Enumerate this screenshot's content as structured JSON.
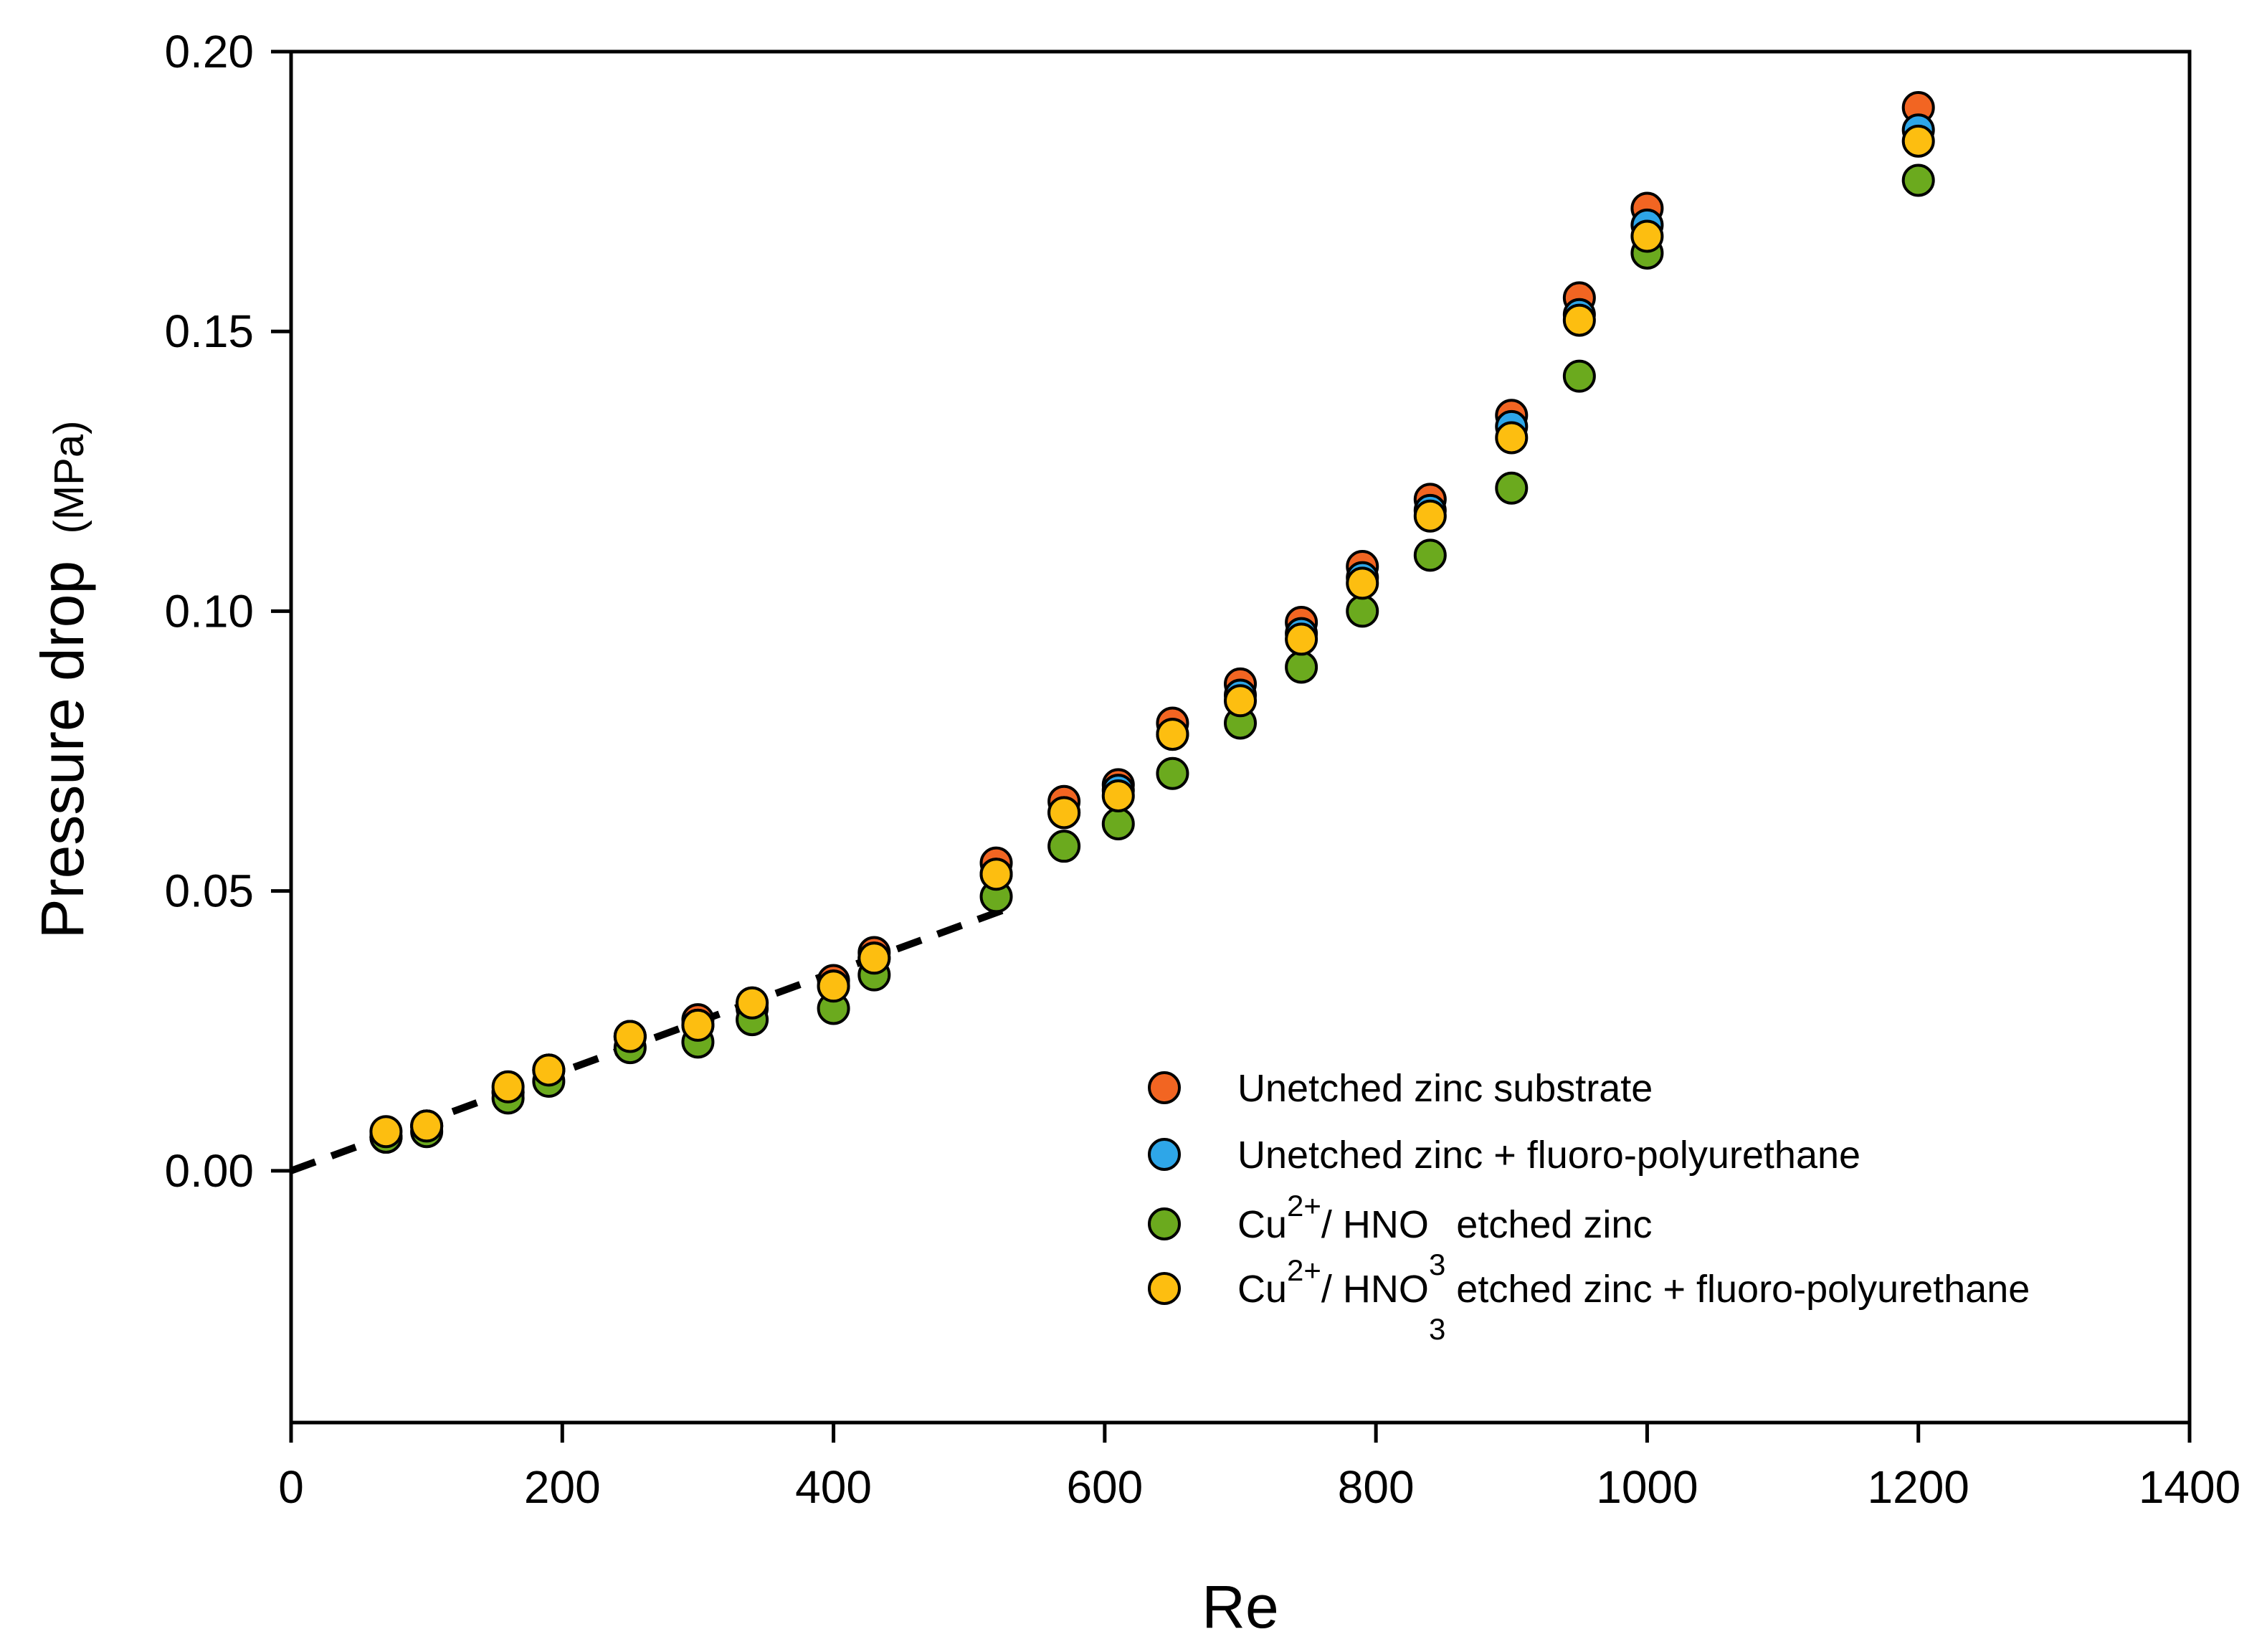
{
  "chart_data": {
    "type": "scatter",
    "title": "",
    "xlabel": "Re",
    "ylabel": "Pressure drop",
    "ylabel_unit": "(MPa)",
    "xlim": [
      0,
      1400
    ],
    "ylim": [
      -0.045,
      0.2
    ],
    "xticks": [
      0,
      200,
      400,
      600,
      800,
      1000,
      1200,
      1400
    ],
    "xtick_labels": [
      "0",
      "200",
      "400",
      "600",
      "800",
      "1000",
      "1200",
      "1400"
    ],
    "yticks": [
      0.0,
      0.05,
      0.1,
      0.15,
      0.2
    ],
    "ytick_labels": [
      "0.00",
      "0.05",
      "0.10",
      "0.15",
      "0.20"
    ],
    "grid": false,
    "legend_position": "bottom-right",
    "series": [
      {
        "name": "Unetched zinc substrate",
        "color": "#F26522",
        "points": [
          [
            70,
            0.006
          ],
          [
            100,
            0.008
          ],
          [
            160,
            0.014
          ],
          [
            190,
            0.018
          ],
          [
            250,
            0.024
          ],
          [
            300,
            0.027
          ],
          [
            340,
            0.03
          ],
          [
            400,
            0.034
          ],
          [
            430,
            0.039
          ],
          [
            520,
            0.055
          ],
          [
            570,
            0.066
          ],
          [
            610,
            0.069
          ],
          [
            650,
            0.08
          ],
          [
            700,
            0.087
          ],
          [
            745,
            0.098
          ],
          [
            790,
            0.108
          ],
          [
            840,
            0.12
          ],
          [
            900,
            0.135
          ],
          [
            950,
            0.156
          ],
          [
            1000,
            0.172
          ],
          [
            1200,
            0.19
          ]
        ]
      },
      {
        "name": "Unetched zinc + fluoro-polyurethane",
        "color": "#2EA6E8",
        "points": [
          [
            70,
            0.006
          ],
          [
            100,
            0.008
          ],
          [
            160,
            0.014
          ],
          [
            190,
            0.018
          ],
          [
            250,
            0.024
          ],
          [
            300,
            0.026
          ],
          [
            340,
            0.029
          ],
          [
            400,
            0.033
          ],
          [
            430,
            0.038
          ],
          [
            520,
            0.053
          ],
          [
            570,
            0.064
          ],
          [
            610,
            0.068
          ],
          [
            650,
            0.078
          ],
          [
            700,
            0.085
          ],
          [
            745,
            0.096
          ],
          [
            790,
            0.106
          ],
          [
            840,
            0.118
          ],
          [
            900,
            0.133
          ],
          [
            950,
            0.153
          ],
          [
            1000,
            0.169
          ],
          [
            1200,
            0.186
          ]
        ]
      },
      {
        "name": "Cu2+/ HNO3 etched zinc",
        "color": "#6BAA1E",
        "points": [
          [
            70,
            0.006
          ],
          [
            100,
            0.007
          ],
          [
            160,
            0.013
          ],
          [
            190,
            0.016
          ],
          [
            250,
            0.022
          ],
          [
            300,
            0.023
          ],
          [
            340,
            0.027
          ],
          [
            400,
            0.029
          ],
          [
            430,
            0.035
          ],
          [
            520,
            0.049
          ],
          [
            570,
            0.058
          ],
          [
            610,
            0.062
          ],
          [
            650,
            0.071
          ],
          [
            700,
            0.08
          ],
          [
            745,
            0.09
          ],
          [
            790,
            0.1
          ],
          [
            840,
            0.11
          ],
          [
            900,
            0.122
          ],
          [
            950,
            0.142
          ],
          [
            1000,
            0.164
          ],
          [
            1200,
            0.177
          ]
        ]
      },
      {
        "name": "Cu2+/ HNO3 etched zinc + fluoro-polyurethane",
        "color": "#FDBE10",
        "points": [
          [
            70,
            0.007
          ],
          [
            100,
            0.008
          ],
          [
            160,
            0.015
          ],
          [
            190,
            0.018
          ],
          [
            250,
            0.024
          ],
          [
            300,
            0.026
          ],
          [
            340,
            0.03
          ],
          [
            400,
            0.033
          ],
          [
            430,
            0.038
          ],
          [
            520,
            0.053
          ],
          [
            570,
            0.064
          ],
          [
            610,
            0.067
          ],
          [
            650,
            0.078
          ],
          [
            700,
            0.084
          ],
          [
            745,
            0.095
          ],
          [
            790,
            0.105
          ],
          [
            840,
            0.117
          ],
          [
            900,
            0.131
          ],
          [
            950,
            0.152
          ],
          [
            1000,
            0.167
          ],
          [
            1200,
            0.184
          ]
        ]
      }
    ],
    "trendline": {
      "style": "dashed",
      "color": "#000000",
      "x": [
        0,
        530
      ],
      "y": [
        0.0,
        0.047
      ]
    }
  },
  "legend": [
    {
      "parts": [
        {
          "text": "Unetched zinc substrate"
        }
      ]
    },
    {
      "parts": [
        {
          "text": "Unetched zinc + fluoro-polyurethane"
        }
      ]
    },
    {
      "parts": [
        {
          "text": "Cu"
        },
        {
          "text": "2+",
          "sup": true
        },
        {
          "text": "/ HNO"
        },
        {
          "text": "3",
          "sub": true
        },
        {
          "text": " etched zinc"
        }
      ]
    },
    {
      "parts": [
        {
          "text": "Cu"
        },
        {
          "text": "2+",
          "sup": true
        },
        {
          "text": "/ HNO"
        },
        {
          "text": "3",
          "sub": true
        },
        {
          "text": " etched zinc + fluoro-polyurethane"
        }
      ]
    }
  ]
}
